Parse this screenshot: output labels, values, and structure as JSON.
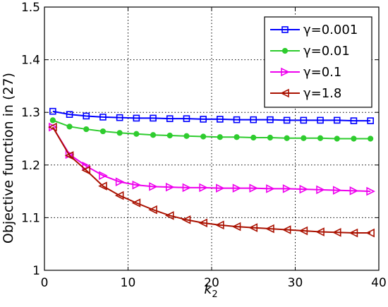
{
  "chart_data": {
    "type": "line",
    "xlabel": "k",
    "xlabel_subscript": "2",
    "ylabel": "Objective function in (27)",
    "xlim": [
      0,
      40
    ],
    "ylim": [
      1,
      1.5
    ],
    "xticks": [
      0,
      10,
      20,
      30,
      40
    ],
    "yticks": [
      1,
      1.1,
      1.2,
      1.3,
      1.4,
      1.5
    ],
    "xtick_labels": [
      "0",
      "10",
      "20",
      "30",
      "40"
    ],
    "ytick_labels": [
      "1",
      "1.1",
      "1.2",
      "1.3",
      "1.4",
      "1.5"
    ],
    "grid": true,
    "legend_position": "top-right",
    "x": [
      1,
      3,
      5,
      7,
      9,
      11,
      13,
      15,
      17,
      19,
      21,
      23,
      25,
      27,
      29,
      31,
      33,
      35,
      37,
      39
    ],
    "series": [
      {
        "name": "γ=0.001",
        "color": "#0000ff",
        "marker": "square",
        "values": [
          1.302,
          1.296,
          1.293,
          1.291,
          1.29,
          1.289,
          1.289,
          1.288,
          1.288,
          1.287,
          1.287,
          1.286,
          1.286,
          1.286,
          1.285,
          1.285,
          1.285,
          1.285,
          1.284,
          1.284
        ]
      },
      {
        "name": "γ=0.01",
        "color": "#2ecc2e",
        "marker": "dot",
        "values": [
          1.285,
          1.273,
          1.268,
          1.264,
          1.261,
          1.259,
          1.257,
          1.256,
          1.255,
          1.254,
          1.253,
          1.253,
          1.252,
          1.252,
          1.251,
          1.251,
          1.251,
          1.25,
          1.25,
          1.25
        ]
      },
      {
        "name": "γ=0.1",
        "color": "#ee00ee",
        "marker": "triangle-right",
        "values": [
          1.272,
          1.22,
          1.198,
          1.18,
          1.168,
          1.162,
          1.159,
          1.158,
          1.157,
          1.157,
          1.156,
          1.156,
          1.156,
          1.155,
          1.155,
          1.154,
          1.153,
          1.152,
          1.151,
          1.15
        ]
      },
      {
        "name": "γ=1.8",
        "color": "#aa1100",
        "marker": "triangle-left",
        "values": [
          1.272,
          1.218,
          1.19,
          1.16,
          1.142,
          1.128,
          1.115,
          1.104,
          1.096,
          1.09,
          1.086,
          1.083,
          1.081,
          1.079,
          1.077,
          1.075,
          1.073,
          1.072,
          1.071,
          1.071
        ]
      }
    ]
  }
}
